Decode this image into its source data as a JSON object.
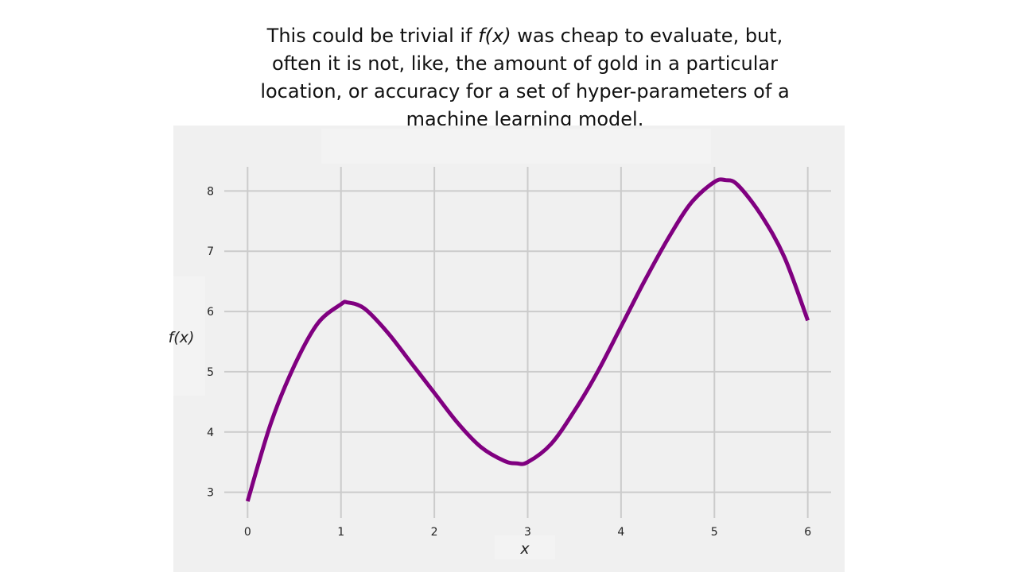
{
  "caption": {
    "part1": "This could be trivial if ",
    "fx": "f(x)",
    "part2": " was cheap to evaluate, but, often it is not, like, the amount of gold in a particular location, or accuracy for a set of hyper-parameters of a machine learning model."
  },
  "chart_data": {
    "type": "line",
    "xlabel": "x",
    "ylabel": "f(x)",
    "xlim": [
      -0.25,
      6.25
    ],
    "ylim": [
      2.6,
      8.4
    ],
    "x_ticks": [
      0,
      1,
      2,
      3,
      4,
      5,
      6
    ],
    "y_ticks": [
      3,
      4,
      5,
      6,
      7,
      8
    ],
    "grid": true,
    "series": [
      {
        "color": "#800080",
        "x": [
          0,
          0.25,
          0.5,
          0.75,
          1.0,
          1.07,
          1.25,
          1.5,
          1.75,
          2.0,
          2.25,
          2.5,
          2.75,
          2.88,
          3.0,
          3.25,
          3.5,
          3.75,
          4.0,
          4.25,
          4.5,
          4.75,
          5.0,
          5.12,
          5.25,
          5.5,
          5.75,
          6.0
        ],
        "y": [
          2.85,
          4.15,
          5.1,
          5.8,
          6.12,
          6.15,
          6.05,
          5.65,
          5.15,
          4.65,
          4.15,
          3.75,
          3.52,
          3.48,
          3.5,
          3.8,
          4.35,
          5.0,
          5.75,
          6.5,
          7.2,
          7.8,
          8.15,
          8.18,
          8.1,
          7.6,
          6.9,
          5.85
        ]
      }
    ]
  }
}
